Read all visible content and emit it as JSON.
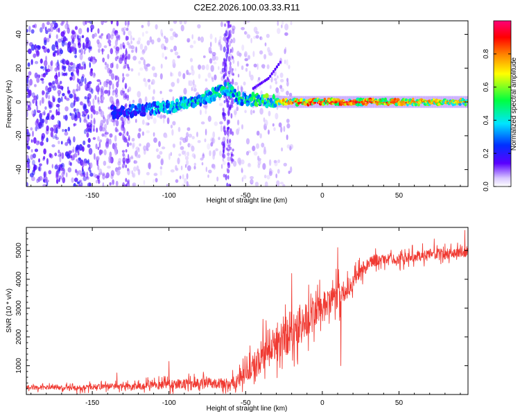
{
  "figure_title": "C2E2.2026.100.03.33.R11",
  "colors": {
    "snr_line": "#f03a32",
    "axis": "#000000",
    "background": "#ffffff"
  },
  "chart_data": [
    {
      "type": "heatmap",
      "name": "spectrogram",
      "title": "C2E2.2026.100.03.33.R11",
      "xlabel": "Height of straight line (km)",
      "ylabel": "Frequency (Hz)",
      "xlim": [
        -193,
        95
      ],
      "ylim": [
        -50,
        48
      ],
      "x_ticks": [
        -150,
        -100,
        -50,
        0,
        50
      ],
      "x_tick_labels": [
        "-150",
        "-100",
        "-50",
        "0",
        "50"
      ],
      "y_ticks": [
        -40,
        -20,
        0,
        20,
        40
      ],
      "y_tick_labels": [
        "-40",
        "-20",
        "0",
        "20",
        "40"
      ],
      "colorbar": {
        "label": "Normalized spectral amplitude",
        "range": [
          0,
          1
        ],
        "ticks": [
          0.0,
          0.2,
          0.4,
          0.6,
          0.8
        ],
        "tick_labels": [
          "0.0",
          "0.2",
          "0.4",
          "0.6",
          "0.8"
        ],
        "colormap": [
          "#ffffff",
          "#5a00ff",
          "#0030ff",
          "#00e5ff",
          "#00ff40",
          "#ffff00",
          "#ff8000",
          "#ff0000",
          "#ff0078"
        ]
      },
      "ridge": {
        "points": [
          [
            -136,
            -6
          ],
          [
            -120,
            -5
          ],
          [
            -100,
            -3
          ],
          [
            -80,
            1
          ],
          [
            -62,
            8
          ],
          [
            -55,
            2
          ],
          [
            -40,
            1
          ],
          [
            -25,
            0
          ],
          [
            0,
            0
          ],
          [
            95,
            0
          ]
        ],
        "peak_amplitude": [
          [
            -136,
            0.25
          ],
          [
            -100,
            0.45
          ],
          [
            -60,
            0.5
          ],
          [
            -40,
            0.55
          ],
          [
            -25,
            0.75
          ],
          [
            -10,
            0.9
          ],
          [
            20,
            0.9
          ],
          [
            95,
            0.7
          ]
        ]
      },
      "branch": {
        "points": [
          [
            -45,
            8
          ],
          [
            -35,
            14
          ],
          [
            -27,
            24
          ]
        ]
      }
    },
    {
      "type": "line",
      "name": "snr",
      "xlabel": "Height of straight line (km)",
      "ylabel": "SNR (10 * v/v)",
      "xlim": [
        -193,
        95
      ],
      "ylim": [
        0,
        5800
      ],
      "x_ticks": [
        -150,
        -100,
        -50,
        0,
        50
      ],
      "x_tick_labels": [
        "-150",
        "-100",
        "-50",
        "0",
        "50"
      ],
      "y_ticks": [
        1000,
        2000,
        3000,
        4000,
        5000
      ],
      "y_tick_labels": [
        "1000",
        "2000",
        "3000",
        "4000",
        "5000"
      ],
      "series": [
        {
          "name": "SNR",
          "color": "#f03a32",
          "trend_x": [
            -193,
            -160,
            -140,
            -120,
            -100,
            -80,
            -60,
            -55,
            -50,
            -45,
            -40,
            -35,
            -30,
            -25,
            -20,
            -15,
            -10,
            -5,
            0,
            5,
            10,
            15,
            20,
            25,
            30,
            40,
            50,
            60,
            70,
            80,
            95
          ],
          "trend_y": [
            250,
            220,
            300,
            260,
            350,
            400,
            380,
            500,
            700,
            1000,
            1300,
            1600,
            1800,
            2000,
            2200,
            2400,
            2600,
            2800,
            3000,
            3200,
            3400,
            3600,
            3900,
            4300,
            4600,
            4700,
            4700,
            4800,
            4850,
            4900,
            4950
          ],
          "noise_x": [
            -193,
            -140,
            -100,
            -60,
            -50,
            -40,
            -30,
            -20,
            -10,
            0,
            10,
            20,
            30,
            40,
            60,
            95
          ],
          "noise_y": [
            120,
            150,
            250,
            300,
            500,
            900,
            1200,
            1300,
            1000,
            800,
            700,
            500,
            350,
            280,
            300,
            280
          ],
          "highlights": [
            {
              "x": -134,
              "y": 750
            },
            {
              "x": -100,
              "y": 1150
            },
            {
              "x": -20,
              "y": 4200
            },
            {
              "x": 10,
              "y": 5100
            },
            {
              "x": 12,
              "y": 1000
            },
            {
              "x": 73,
              "y": 5400
            },
            {
              "x": 93,
              "y": 5700
            }
          ]
        }
      ]
    }
  ]
}
